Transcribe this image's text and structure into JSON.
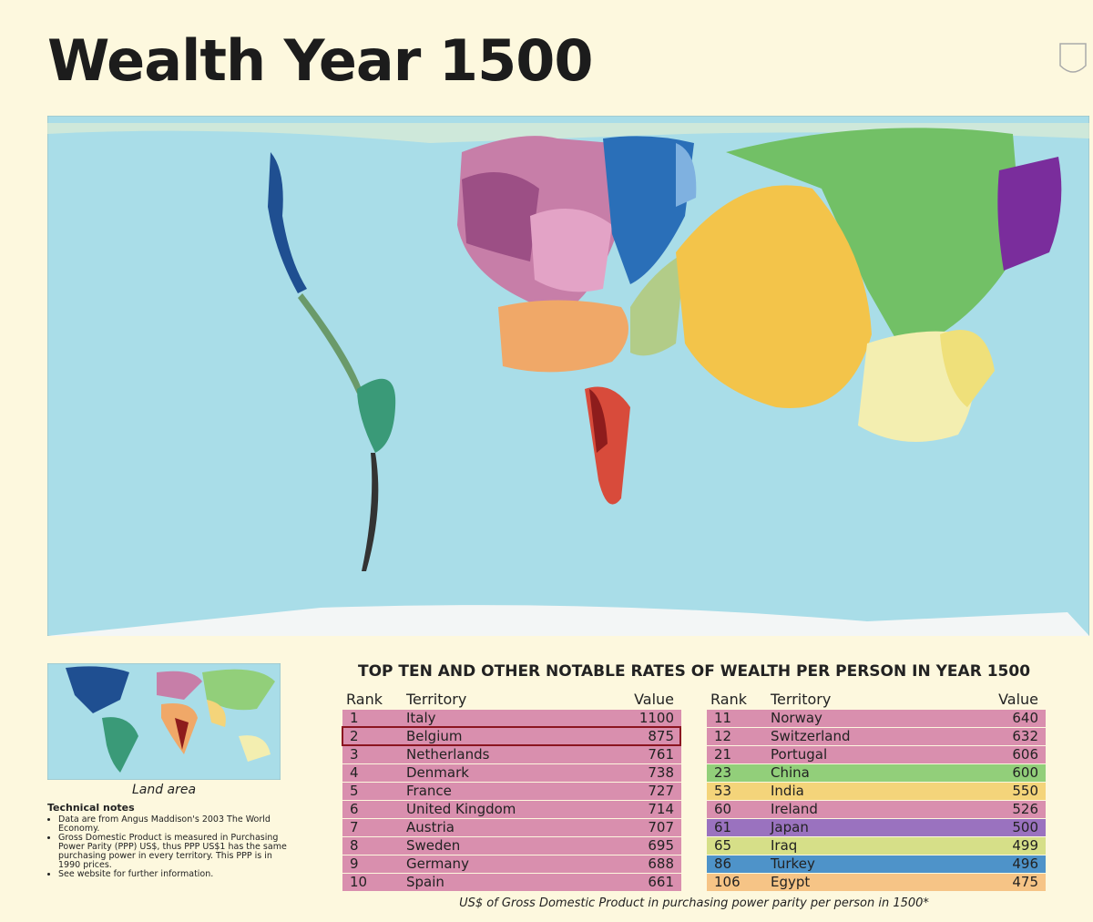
{
  "header": {
    "title": "Wealth Year 1500"
  },
  "inset": {
    "caption": "Land area"
  },
  "notes": {
    "title": "Technical notes",
    "items": [
      "Data are from Angus Maddison's 2003 The World Economy.",
      "Gross Domestic Product is measured in Purchasing Power Parity (PPP) US$, thus PPP US$1 has the same purchasing power in every territory. This PPP is in 1990 prices.",
      "See website for further information."
    ]
  },
  "table": {
    "title": "TOP TEN AND OTHER NOTABLE RATES OF WEALTH PER PERSON IN YEAR 1500",
    "columns": [
      "Rank",
      "Territory",
      "Value"
    ],
    "left": [
      {
        "rank": 1,
        "territory": "Italy",
        "value": 1100,
        "color": "#d98fae"
      },
      {
        "rank": 2,
        "territory": "Belgium",
        "value": 875,
        "color": "#d98fae"
      },
      {
        "rank": 3,
        "territory": "Netherlands",
        "value": 761,
        "color": "#d98fae"
      },
      {
        "rank": 4,
        "territory": "Denmark",
        "value": 738,
        "color": "#d98fae"
      },
      {
        "rank": 5,
        "territory": "France",
        "value": 727,
        "color": "#d98fae"
      },
      {
        "rank": 6,
        "territory": "United Kingdom",
        "value": 714,
        "color": "#d98fae"
      },
      {
        "rank": 7,
        "territory": "Austria",
        "value": 707,
        "color": "#d98fae"
      },
      {
        "rank": 8,
        "territory": "Sweden",
        "value": 695,
        "color": "#d98fae"
      },
      {
        "rank": 9,
        "territory": "Germany",
        "value": 688,
        "color": "#d98fae"
      },
      {
        "rank": 10,
        "territory": "Spain",
        "value": 661,
        "color": "#d98fae"
      }
    ],
    "right": [
      {
        "rank": 11,
        "territory": "Norway",
        "value": 640,
        "color": "#d98fae"
      },
      {
        "rank": 12,
        "territory": "Switzerland",
        "value": 632,
        "color": "#d98fae"
      },
      {
        "rank": 21,
        "territory": "Portugal",
        "value": 606,
        "color": "#d98fae"
      },
      {
        "rank": 23,
        "territory": "China",
        "value": 600,
        "color": "#92cf7a"
      },
      {
        "rank": 53,
        "territory": "India",
        "value": 550,
        "color": "#f4d47a"
      },
      {
        "rank": 60,
        "territory": "Ireland",
        "value": 526,
        "color": "#d98fae"
      },
      {
        "rank": 61,
        "territory": "Japan",
        "value": 500,
        "color": "#9a72bf"
      },
      {
        "rank": 65,
        "territory": "Iraq",
        "value": 499,
        "color": "#d6df88"
      },
      {
        "rank": 86,
        "territory": "Turkey",
        "value": 496,
        "color": "#4e93c9"
      },
      {
        "rank": 106,
        "territory": "Egypt",
        "value": 475,
        "color": "#f6c486"
      }
    ]
  },
  "caption": "US$ of Gross Domestic Product in purchasing power parity per person in 1500*"
}
